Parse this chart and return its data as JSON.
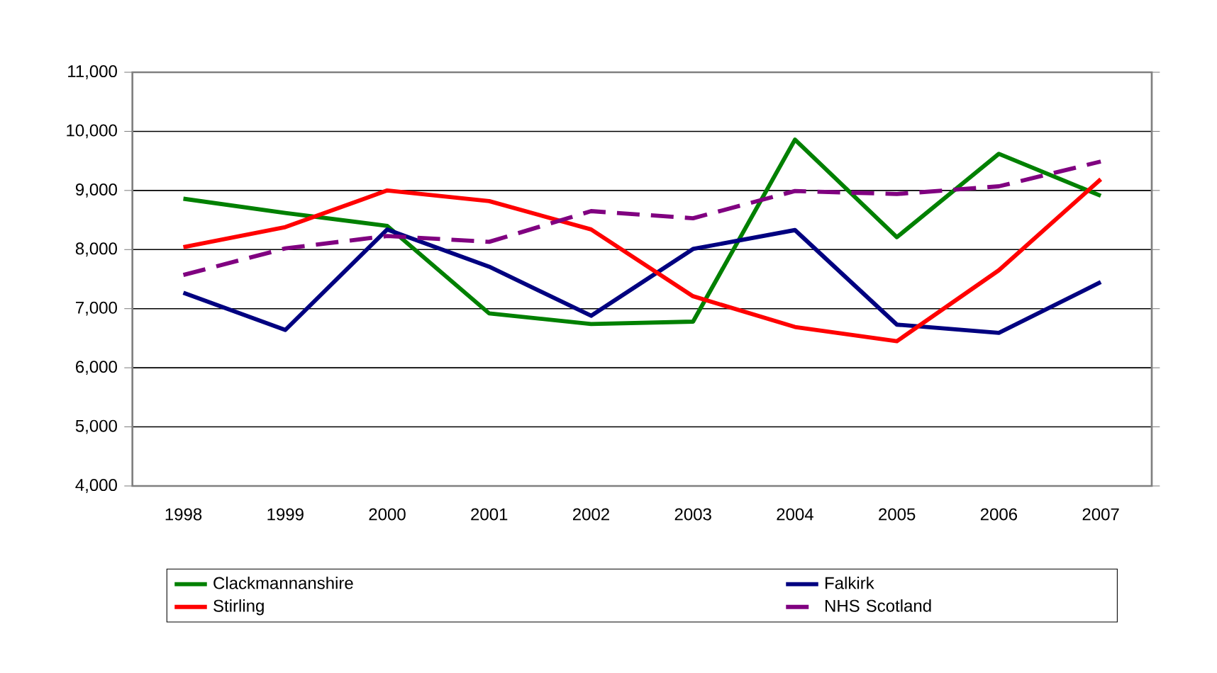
{
  "chart_data": {
    "type": "line",
    "categories": [
      "1998",
      "1999",
      "2000",
      "2001",
      "2002",
      "2003",
      "2004",
      "2005",
      "2006",
      "2007"
    ],
    "series": [
      {
        "name": "Clackmannanshire",
        "color": "#008000",
        "values": [
          8860,
          8620,
          8400,
          6920,
          6740,
          6780,
          9860,
          8210,
          9620,
          8910
        ]
      },
      {
        "name": "Falkirk",
        "color": "#000080",
        "values": [
          7270,
          6640,
          8340,
          7710,
          6880,
          8010,
          8330,
          6730,
          6590,
          7450
        ]
      },
      {
        "name": "Stirling",
        "color": "#ff0000",
        "values": [
          8040,
          8380,
          9000,
          8820,
          8340,
          7210,
          6690,
          6450,
          7650,
          9190
        ]
      },
      {
        "name": "NHS Scotland",
        "color": "#800080",
        "line_style": "dashed",
        "values": [
          7570,
          8020,
          8230,
          8130,
          8650,
          8530,
          8990,
          8940,
          9070,
          9490
        ]
      }
    ],
    "ylim": [
      4000,
      11000
    ],
    "yticks": [
      {
        "value": 4000,
        "label": "4,000"
      },
      {
        "value": 5000,
        "label": "5,000"
      },
      {
        "value": 6000,
        "label": "6,000"
      },
      {
        "value": 7000,
        "label": "7,000"
      },
      {
        "value": 8000,
        "label": "8,000"
      },
      {
        "value": 9000,
        "label": "9,000"
      },
      {
        "value": 10000,
        "label": "10,000"
      },
      {
        "value": 11000,
        "label": "11,000"
      }
    ],
    "grid": "y",
    "legend": "bottom",
    "marker": "none"
  }
}
